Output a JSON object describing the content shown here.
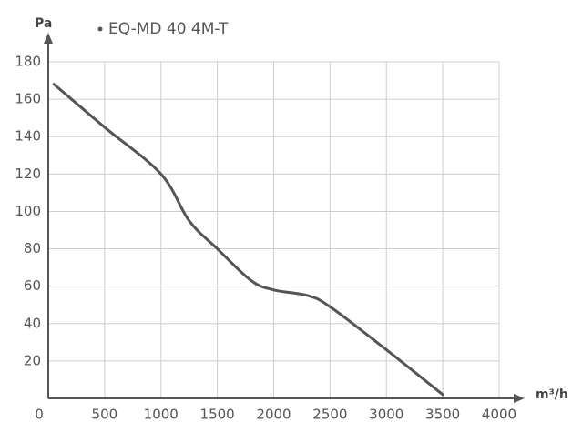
{
  "chart_data": {
    "type": "line",
    "legend": "EQ-MD 40 4M-T",
    "y_label": "Pa",
    "x_label": "m³/h",
    "series": [
      {
        "name": "EQ-MD 40 4M-T",
        "color": "#555555",
        "x": [
          50,
          500,
          1000,
          1250,
          1500,
          1800,
          2000,
          2300,
          2500,
          3000,
          3500
        ],
        "values": [
          168,
          145,
          120,
          95,
          80,
          63,
          58,
          55,
          49,
          26,
          2
        ]
      }
    ],
    "xlim": [
      0,
      4000
    ],
    "xticks": [
      0,
      500,
      1000,
      1500,
      2000,
      2500,
      3000,
      3500,
      4000
    ],
    "ylim": [
      0,
      180
    ],
    "yticks": [
      20,
      40,
      60,
      80,
      100,
      120,
      140,
      160,
      180
    ],
    "grid": true
  }
}
